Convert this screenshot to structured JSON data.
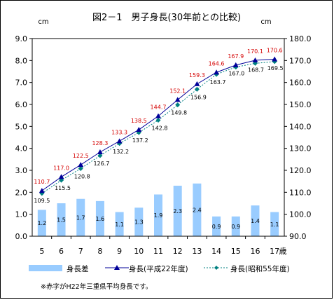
{
  "chart_data": {
    "type": "bar+line",
    "title": "図2－1　男子身長(30年前との比較)",
    "left_unit": "cm",
    "right_unit": "cm",
    "x_unit": "歳",
    "categories": [
      "5",
      "6",
      "7",
      "8",
      "9",
      "10",
      "11",
      "12",
      "13",
      "14",
      "15",
      "16",
      "17"
    ],
    "left_axis": {
      "min": 0.0,
      "max": 9.0,
      "step": 1.0,
      "ticks": [
        "0.0",
        "1.0",
        "2.0",
        "3.0",
        "4.0",
        "5.0",
        "6.0",
        "7.0",
        "8.0",
        "9.0"
      ]
    },
    "right_axis": {
      "min": 90.0,
      "max": 180.0,
      "step": 10.0,
      "ticks": [
        "90.0",
        "100.0",
        "110.0",
        "120.0",
        "130.0",
        "140.0",
        "150.0",
        "160.0",
        "170.0",
        "180.0"
      ]
    },
    "series": [
      {
        "name": "身長差",
        "type": "bar",
        "axis": "left",
        "color": "#99ccff",
        "values": [
          1.2,
          1.5,
          1.7,
          1.6,
          1.1,
          1.3,
          1.9,
          2.3,
          2.4,
          0.9,
          0.9,
          1.4,
          1.1
        ],
        "labels": [
          "1.2",
          "1.5",
          "1.7",
          "1.6",
          "1.1",
          "1.3",
          "1.9",
          "2.3",
          "2.4",
          "0.9",
          "0.9",
          "1.4",
          "1.1"
        ]
      },
      {
        "name": "身長(平成22年度)",
        "type": "line",
        "axis": "right",
        "color": "#000099",
        "marker": "triangle",
        "values": [
          110.7,
          117.0,
          122.5,
          128.3,
          133.3,
          138.5,
          144.7,
          152.1,
          159.3,
          164.6,
          167.9,
          170.1,
          170.6
        ],
        "labels": [
          "110.7",
          "117.0",
          "122.5",
          "128.3",
          "133.3",
          "138.5",
          "144.7",
          "152.1",
          "159.3",
          "164.6",
          "167.9",
          "170.1",
          "170.6"
        ],
        "label_color": "#d40000"
      },
      {
        "name": "身長(昭和55年度)",
        "type": "line",
        "axis": "right",
        "color": "#008080",
        "marker": "diamond",
        "dash": "dotted",
        "values": [
          109.5,
          115.5,
          120.8,
          126.7,
          132.2,
          137.2,
          142.8,
          149.8,
          156.9,
          163.7,
          167.0,
          168.7,
          169.5
        ],
        "labels": [
          "109.5",
          "115.5",
          "120.8",
          "126.7",
          "132.2",
          "137.2",
          "142.8",
          "149.8",
          "156.9",
          "163.7",
          "167.0",
          "168.7",
          "169.5"
        ]
      }
    ],
    "legend_position": "bottom",
    "note": "※赤字がH22年三重県平均身長です。"
  }
}
